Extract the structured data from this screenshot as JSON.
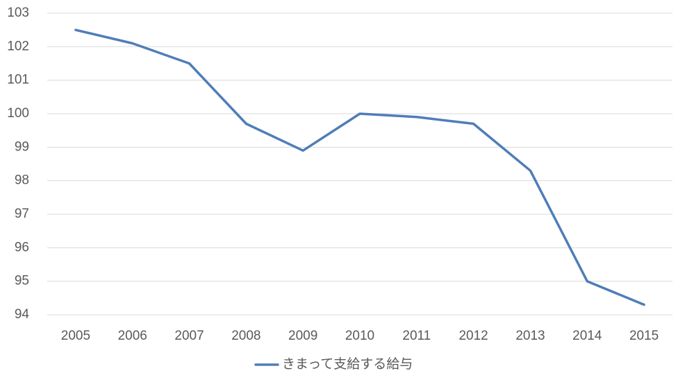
{
  "chart_data": {
    "type": "line",
    "categories": [
      "2005",
      "2006",
      "2007",
      "2008",
      "2009",
      "2010",
      "2011",
      "2012",
      "2013",
      "2014",
      "2015"
    ],
    "series": [
      {
        "name": "きまって支給する給与",
        "color": "#4f7db8",
        "values": [
          102.5,
          102.1,
          101.5,
          99.7,
          98.9,
          100.0,
          99.9,
          99.7,
          98.3,
          95.0,
          94.3
        ]
      }
    ],
    "ylim": [
      94,
      103
    ],
    "yticks": [
      94,
      95,
      96,
      97,
      98,
      99,
      100,
      101,
      102,
      103
    ],
    "grid": true,
    "legend": "bottom"
  }
}
